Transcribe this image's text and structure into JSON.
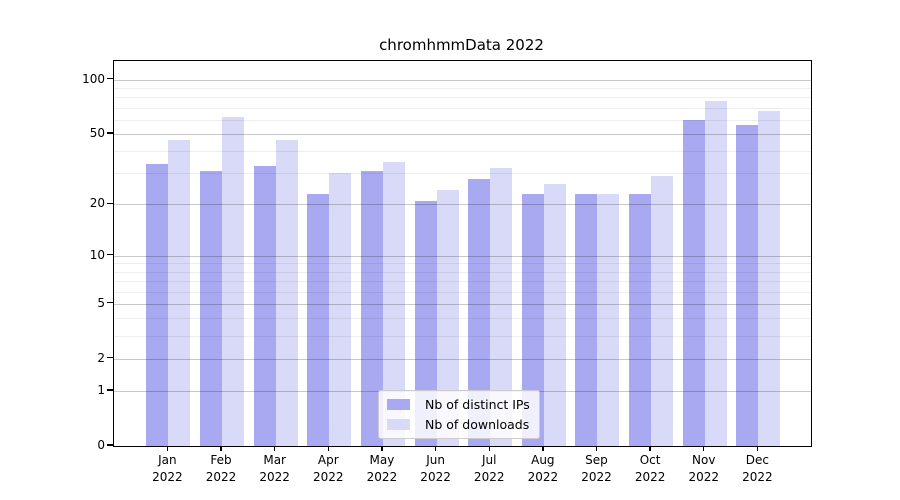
{
  "title": "chromhmmData 2022",
  "chart_data": {
    "type": "bar",
    "title": "chromhmmData 2022",
    "categories": [
      "Jan",
      "Feb",
      "Mar",
      "Apr",
      "May",
      "Jun",
      "Jul",
      "Aug",
      "Sep",
      "Oct",
      "Nov",
      "Dec"
    ],
    "year": "2022",
    "series": [
      {
        "name": "Nb of distinct IPs",
        "color": "#a9a9f2",
        "values": [
          34,
          31,
          33,
          23,
          31,
          21,
          28,
          23,
          23,
          23,
          60,
          56
        ]
      },
      {
        "name": "Nb of downloads",
        "color": "#d9d9f8",
        "values": [
          46,
          62,
          46,
          30,
          35,
          24,
          32,
          26,
          23,
          29,
          76,
          67
        ]
      }
    ],
    "y_axis": {
      "scale": "log1p",
      "ticks": [
        100,
        50,
        20,
        10,
        5,
        2,
        1,
        0
      ],
      "tick_labels": [
        "100",
        "50",
        "20",
        "10",
        "5",
        "2",
        "1",
        "0"
      ],
      "minor_ticks": [
        3,
        4,
        6,
        7,
        8,
        9,
        30,
        40,
        60,
        70,
        80,
        90
      ],
      "ylim": [
        0,
        127
      ]
    },
    "grid": true,
    "legend_position": "lower center"
  }
}
